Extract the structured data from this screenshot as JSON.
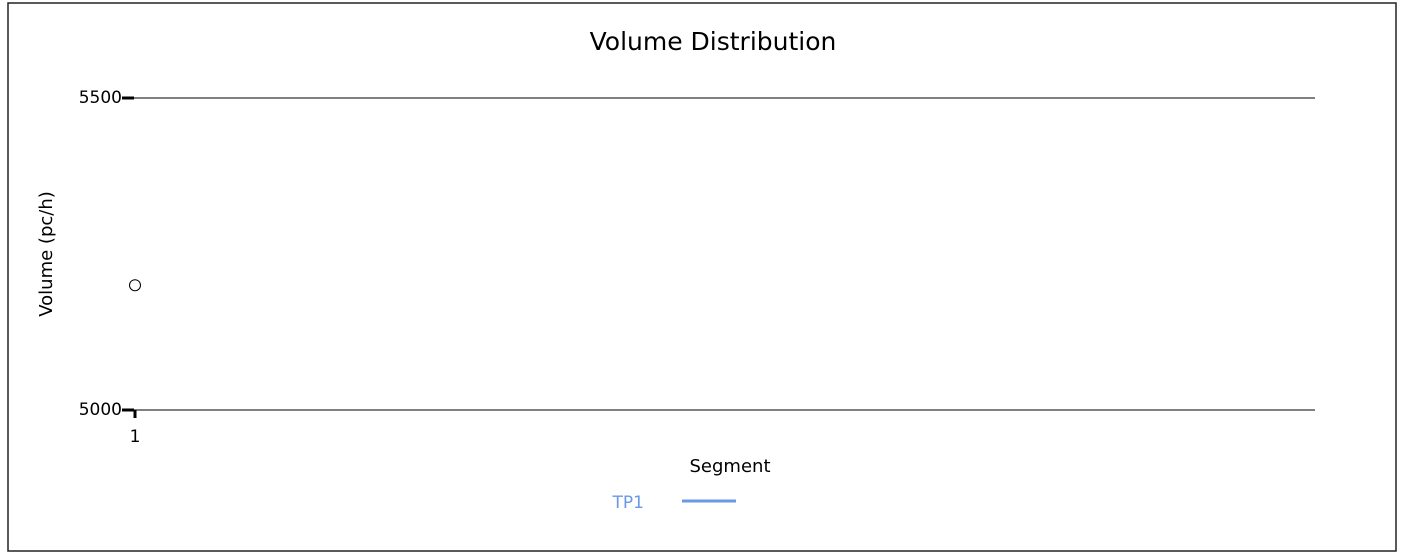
{
  "chart_data": {
    "type": "line",
    "title": "Volume Distribution",
    "x_label": "Segment",
    "y_label": "Volume (pc/h)",
    "categories": [
      "1"
    ],
    "series": [
      {
        "name": "TP1",
        "color": "#6a98e6",
        "values": [
          5200
        ]
      }
    ],
    "ylim": [
      5000,
      5500
    ],
    "yticks": [
      5000,
      5500
    ],
    "grid": true,
    "legend": "bottom"
  }
}
